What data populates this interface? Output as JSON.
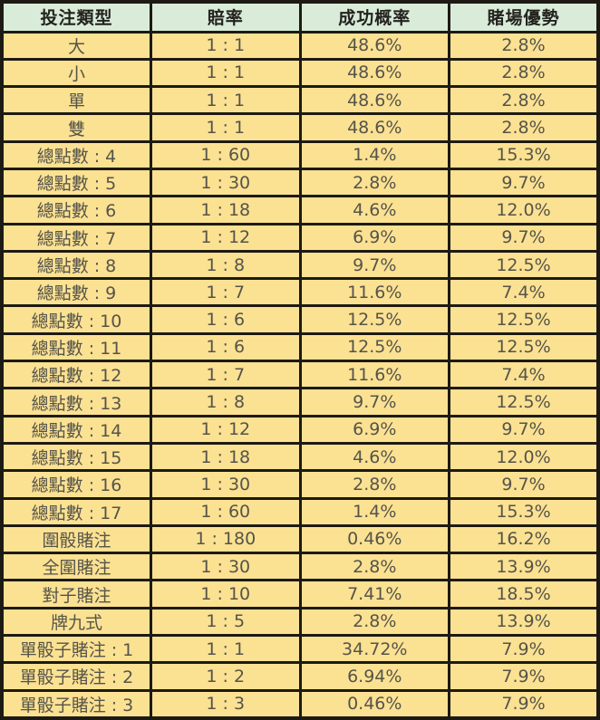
{
  "chart_data": {
    "type": "table",
    "columns": [
      "投注類型",
      "賠率",
      "成功概率",
      "賭場優勢"
    ],
    "rows": [
      [
        "大",
        "1 : 1",
        "48.6%",
        "2.8%"
      ],
      [
        "小",
        "1 : 1",
        "48.6%",
        "2.8%"
      ],
      [
        "單",
        "1 : 1",
        "48.6%",
        "2.8%"
      ],
      [
        "雙",
        "1 : 1",
        "48.6%",
        "2.8%"
      ],
      [
        "總點數 : 4",
        "1 : 60",
        "1.4%",
        "15.3%"
      ],
      [
        "總點數 : 5",
        "1 : 30",
        "2.8%",
        "9.7%"
      ],
      [
        "總點數 : 6",
        "1 : 18",
        "4.6%",
        "12.0%"
      ],
      [
        "總點數 : 7",
        "1 : 12",
        "6.9%",
        "9.7%"
      ],
      [
        "總點數 : 8",
        "1 : 8",
        "9.7%",
        "12.5%"
      ],
      [
        "總點數 : 9",
        "1 : 7",
        "11.6%",
        "7.4%"
      ],
      [
        "總點數 : 10",
        "1 : 6",
        "12.5%",
        "12.5%"
      ],
      [
        "總點數 : 11",
        "1 : 6",
        "12.5%",
        "12.5%"
      ],
      [
        "總點數 : 12",
        "1 : 7",
        "11.6%",
        "7.4%"
      ],
      [
        "總點數 : 13",
        "1 : 8",
        "9.7%",
        "12.5%"
      ],
      [
        "總點數 : 14",
        "1 : 12",
        "6.9%",
        "9.7%"
      ],
      [
        "總點數 : 15",
        "1 : 18",
        "4.6%",
        "12.0%"
      ],
      [
        "總點數 : 16",
        "1 : 30",
        "2.8%",
        "9.7%"
      ],
      [
        "總點數 : 17",
        "1 : 60",
        "1.4%",
        "15.3%"
      ],
      [
        "圍骰賭注",
        "1 : 180",
        "0.46%",
        "16.2%"
      ],
      [
        "全圍賭注",
        "1 : 30",
        "2.8%",
        "13.9%"
      ],
      [
        "對子賭注",
        "1 : 10",
        "7.41%",
        "18.5%"
      ],
      [
        "牌九式",
        "1 : 5",
        "2.8%",
        "13.9%"
      ],
      [
        "單骰子賭注 : 1",
        "1 : 1",
        "34.72%",
        "7.9%"
      ],
      [
        "單骰子賭注 : 2",
        "1 : 2",
        "6.94%",
        "7.9%"
      ],
      [
        "單骰子賭注 : 3",
        "1 : 3",
        "0.46%",
        "7.9%"
      ]
    ]
  },
  "colors": {
    "header_bg": "#d9ecd9",
    "row_bg": "#fbe192",
    "border": "#1d1a14",
    "header_text": "#23221e",
    "row_text": "#55544a"
  }
}
